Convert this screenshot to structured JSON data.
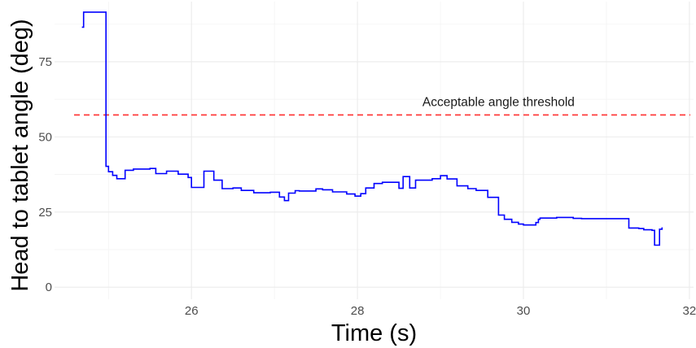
{
  "chart_data": {
    "type": "line",
    "xlabel": "Time (s)",
    "ylabel": "Head to tablet angle (deg)",
    "xlim": [
      24.35,
      32.05
    ],
    "ylim": [
      -4,
      95
    ],
    "x_ticks": [
      26,
      28,
      30,
      32
    ],
    "y_ticks": [
      0,
      25,
      50,
      75
    ],
    "grid": true,
    "line_color": "#0000ff",
    "threshold": {
      "value": 57.3,
      "label": "Acceptable angle threshold",
      "color": "#ff3b3b",
      "style": "dashed"
    },
    "series": [
      {
        "step": true,
        "x": [
          24.68,
          24.7,
          24.95,
          24.97,
          25.0,
          25.05,
          25.1,
          25.2,
          25.3,
          25.5,
          25.57,
          25.7,
          25.84,
          25.96,
          26.0,
          26.15,
          26.27,
          26.37,
          26.5,
          26.6,
          26.75,
          26.95,
          27.06,
          27.12,
          27.17,
          27.25,
          27.3,
          27.5,
          27.58,
          27.7,
          27.87,
          27.97,
          28.04,
          28.1,
          28.2,
          28.3,
          28.5,
          28.55,
          28.63,
          28.7,
          28.9,
          29.0,
          29.08,
          29.2,
          29.33,
          29.43,
          29.57,
          29.7,
          29.77,
          29.86,
          29.94,
          30.0,
          30.1,
          30.15,
          30.18,
          30.2,
          30.4,
          30.6,
          30.7,
          30.8,
          31.0,
          31.2,
          31.27,
          31.39,
          31.45,
          31.55,
          31.58,
          31.62,
          31.64,
          31.67
        ],
        "y": [
          86.5,
          91.5,
          91.5,
          40.2,
          38.4,
          37.2,
          36.1,
          38.9,
          39.3,
          39.5,
          37.8,
          38.6,
          37.6,
          36.5,
          33.2,
          38.6,
          35.6,
          32.8,
          33.0,
          32.2,
          31.4,
          31.6,
          30.0,
          28.8,
          31.3,
          32.1,
          32.0,
          32.7,
          32.4,
          31.7,
          31.0,
          30.3,
          31.1,
          33.0,
          34.5,
          34.9,
          32.9,
          36.8,
          33.0,
          35.6,
          36.1,
          37.1,
          36.0,
          33.7,
          32.8,
          32.2,
          29.9,
          24.0,
          22.6,
          21.6,
          21.0,
          20.7,
          20.7,
          21.5,
          22.6,
          23.0,
          23.2,
          22.9,
          22.8,
          22.8,
          22.8,
          22.8,
          19.7,
          19.5,
          19.1,
          18.9,
          14.0,
          14.0,
          19.3,
          19.9
        ]
      }
    ]
  }
}
